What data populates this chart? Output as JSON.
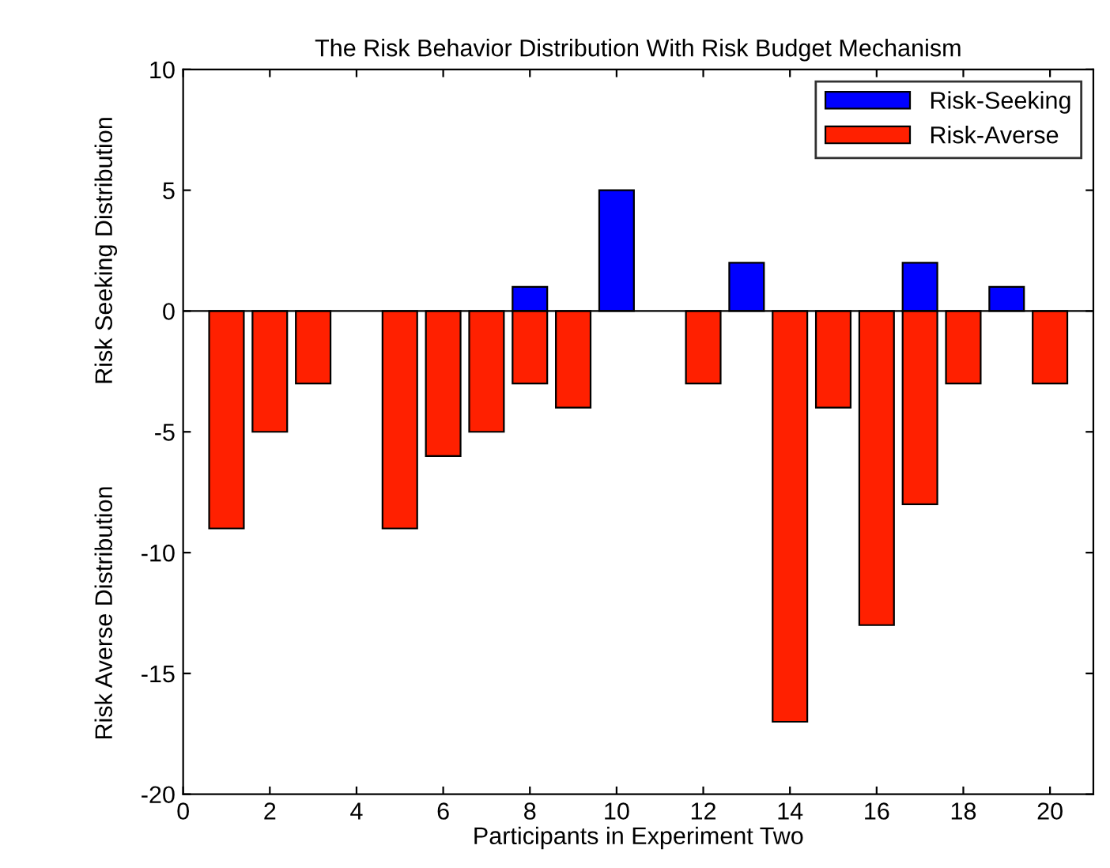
{
  "chart_data": {
    "type": "bar",
    "title": "The Risk Behavior Distribution With Risk Budget Mechanism",
    "xlabel": "Participants in Experiment Two",
    "ylabel": "Risk Seeking Distribution",
    "annotations": [
      "Risk Averse Distribution"
    ],
    "series": [
      {
        "name": "Risk-Seeking",
        "color": "#0000ff",
        "x": [
          8,
          10,
          13,
          17,
          19
        ],
        "values": [
          1,
          5,
          2,
          2,
          1
        ]
      },
      {
        "name": "Risk-Averse",
        "color": "#ff2000",
        "x": [
          1,
          2,
          3,
          5,
          6,
          7,
          8,
          9,
          12,
          14,
          15,
          16,
          17,
          18,
          20
        ],
        "values": [
          -9,
          -5,
          -3,
          -9,
          -6,
          -5,
          -3,
          -4,
          -3,
          -17,
          -4,
          -13,
          -8,
          -3,
          -3
        ]
      }
    ],
    "xlim": [
      0,
      21
    ],
    "xticks": [
      0,
      2,
      4,
      6,
      8,
      10,
      12,
      14,
      16,
      18,
      20
    ],
    "ylim": [
      -20,
      10
    ],
    "yticks": [
      -20,
      -15,
      -10,
      -5,
      0,
      5,
      10
    ],
    "ref_lines": [
      {
        "axis": "y",
        "value": 0,
        "color": "#000000"
      }
    ],
    "legend": "top right",
    "grid": false
  }
}
